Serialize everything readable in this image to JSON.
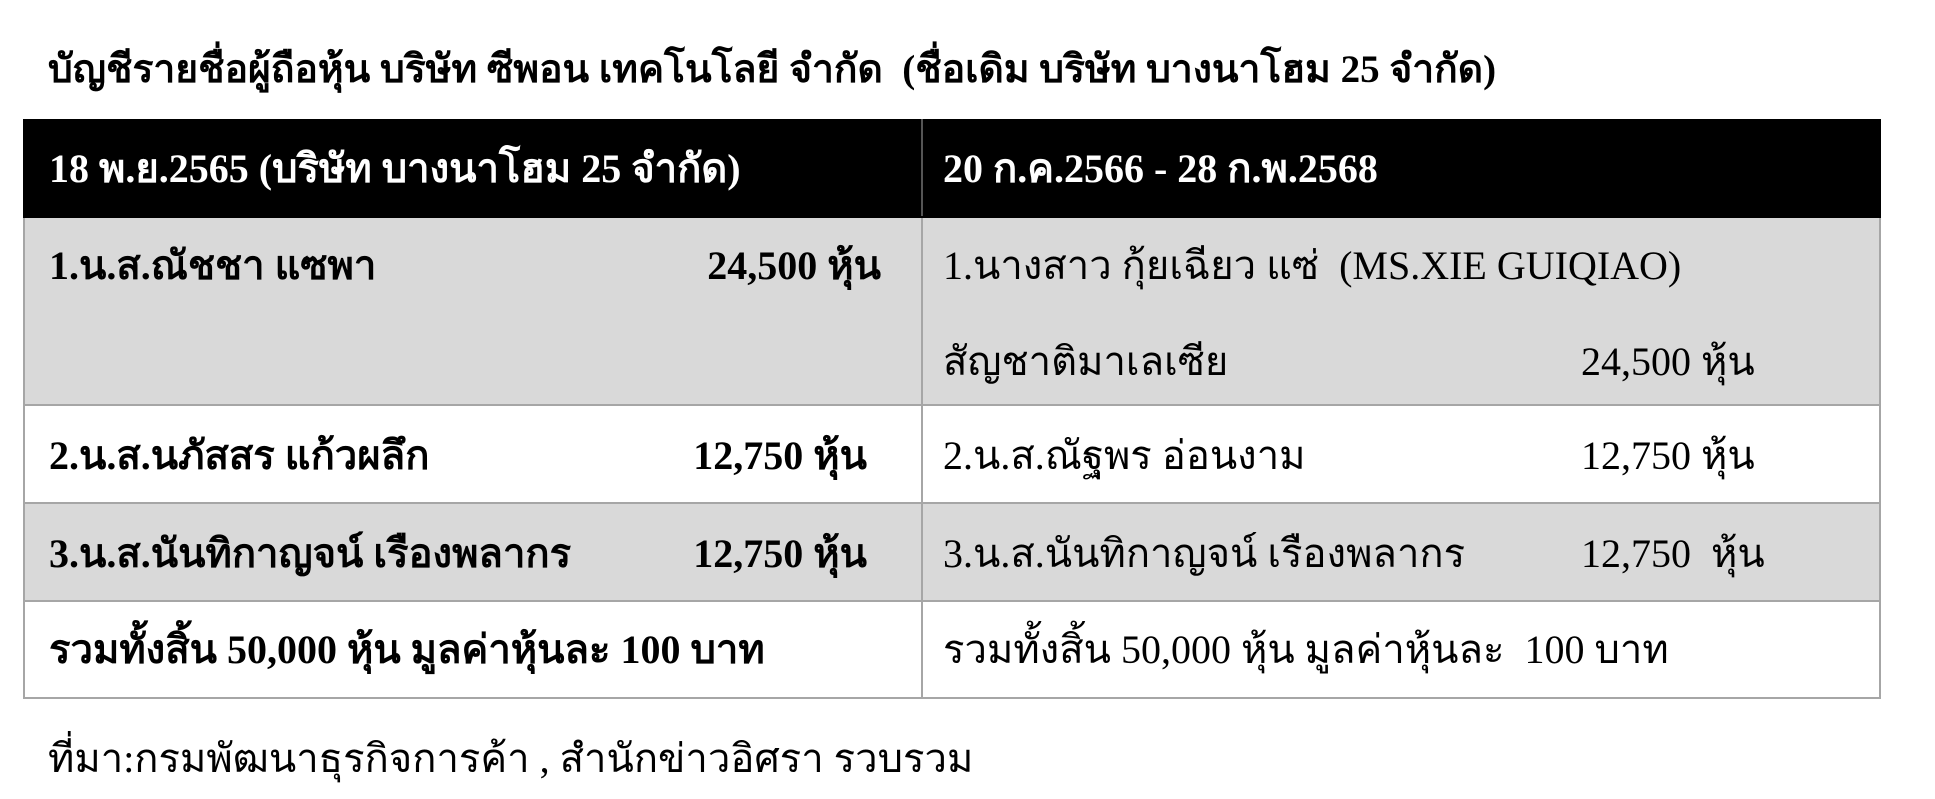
{
  "title": "บัญชีรายชื่อผู้ถือหุ้น บริษัท ซีพอน เทคโนโลยี จำกัด  (ชื่อเดิม บริษัท บางนาโฮม 25 จำกัด)",
  "table": {
    "header": [
      "18 พ.ย.2565 (บริษัท บางนาโฮม 25 จำกัด)",
      "20 ก.ค.2566 - 28 ก.พ.2568"
    ],
    "rows": [
      {
        "left": {
          "name": "1.น.ส.ณัชชา แซพา",
          "shares": "24,500 หุ้น"
        },
        "right": {
          "name": "1.นางสาว กุ้ยเฉียว แซ่  (MS.XIE GUIQIAO)",
          "detail": "สัญชาติมาเลเซีย",
          "shares": "24,500 หุ้น"
        }
      },
      {
        "left": {
          "name": "2.น.ส.นภัสสร แก้วผลึก",
          "shares": "12,750 หุ้น"
        },
        "right": {
          "name": "2.น.ส.ณัฐพร อ่อนงาม",
          "shares": "12,750 หุ้น"
        }
      },
      {
        "left": {
          "name": "3.น.ส.นันทิกาญจน์ เรืองพลากร",
          "shares": "12,750 หุ้น"
        },
        "right": {
          "name": "3.น.ส.นันทิกาญจน์ เรืองพลากร",
          "shares": "12,750  หุ้น"
        }
      }
    ],
    "total": [
      "รวมทั้งสิ้น 50,000 หุ้น มูลค่าหุ้นละ 100 บาท",
      "รวมทั้งสิ้น 50,000 หุ้น มูลค่าหุ้นละ  100 บาท"
    ]
  },
  "source": "ที่มา:กรมพัฒนาธุรกิจการค้า , สำนักข่าวอิศรา รวบรวม"
}
